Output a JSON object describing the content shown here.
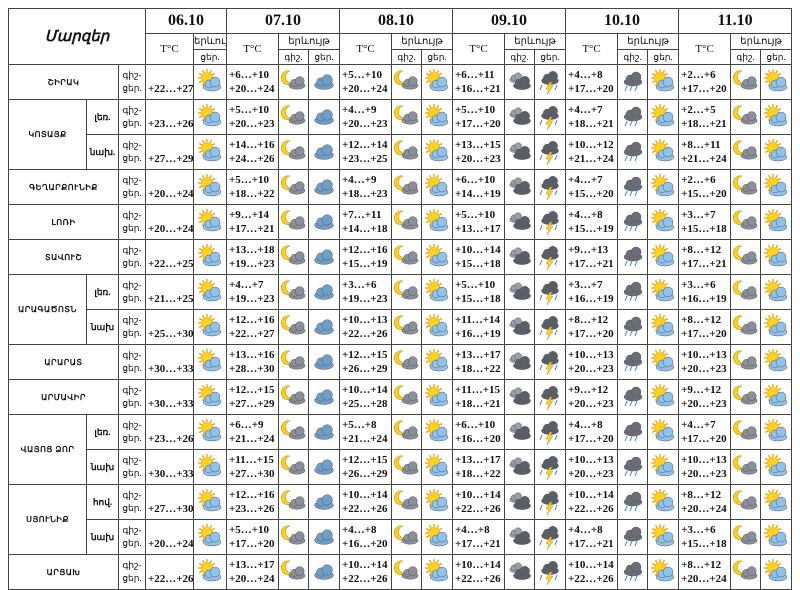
{
  "header": {
    "title": "Մարզեր",
    "dates": [
      "06.10",
      "07.10",
      "08.10",
      "09.10",
      "10.10",
      "11.10"
    ],
    "temp_label": "T°C",
    "phenomenon_label": "երևույթ",
    "night": "գիշ.",
    "day": "ցեր."
  },
  "row_label": [
    "գիշ-",
    "ցեր."
  ],
  "regions": [
    {
      "name": "ՇԻՐԱԿ",
      "rows": [
        {
          "first": "+22…+27",
          "days": [
            [
              "+6…+10",
              "+20…+24"
            ],
            [
              "+5…+10",
              "+20…+24"
            ],
            [
              "+6…+11",
              "+16…+21"
            ],
            [
              "+4…+8",
              "+17…+20"
            ],
            [
              "+2…+6",
              "+17…+20"
            ]
          ]
        }
      ]
    },
    {
      "name": "ԿՈՏԱՅՔ",
      "rows": [
        {
          "sub": "լեռ.",
          "first": "+23…+26",
          "days": [
            [
              "+5…+10",
              "+20…+23"
            ],
            [
              "+4…+9",
              "+20…+23"
            ],
            [
              "+5…+10",
              "+17…+20"
            ],
            [
              "+4…+7",
              "+18…+21"
            ],
            [
              "+2…+5",
              "+18…+21"
            ]
          ]
        },
        {
          "sub": "նախ.",
          "first": "+27…+29",
          "days": [
            [
              "+14…+16",
              "+24…+26"
            ],
            [
              "+12…+14",
              "+23…+25"
            ],
            [
              "+13…+15",
              "+20…+23"
            ],
            [
              "+10…+12",
              "+21…+24"
            ],
            [
              "+8…+11",
              "+21…+24"
            ]
          ]
        }
      ]
    },
    {
      "name": "ԳԵՂԱՐՔՈՒՆԻՔ",
      "rows": [
        {
          "first": "+20…+24",
          "days": [
            [
              "+5…+10",
              "+18…+22"
            ],
            [
              "+4…+9",
              "+18…+23"
            ],
            [
              "+6…+10",
              "+14…+19"
            ],
            [
              "+4…+7",
              "+15…+20"
            ],
            [
              "+2…+6",
              "+15…+20"
            ]
          ]
        }
      ]
    },
    {
      "name": "ԼՈՌԻ",
      "rows": [
        {
          "first": "+20…+24",
          "days": [
            [
              "+9…+14",
              "+17…+21"
            ],
            [
              "+7…+11",
              "+14…+18"
            ],
            [
              "+5…+10",
              "+13…+17"
            ],
            [
              "+4…+8",
              "+15…+19"
            ],
            [
              "+3…+7",
              "+15…+18"
            ]
          ]
        }
      ]
    },
    {
      "name": "ՏԱՎՈՒՇ",
      "rows": [
        {
          "first": "+22…+25",
          "days": [
            [
              "+13…+18",
              "+19…+23"
            ],
            [
              "+12…+16",
              "+15…+19"
            ],
            [
              "+10…+14",
              "+15…+18"
            ],
            [
              "+9…+13",
              "+17…+21"
            ],
            [
              "+8…+12",
              "+17…+21"
            ]
          ]
        }
      ]
    },
    {
      "name": "ԱՐԱԳԱԾՈՏՆ",
      "rows": [
        {
          "sub": "լեռ.",
          "first": "+21…+25",
          "days": [
            [
              "+4…+7",
              "+19…+23"
            ],
            [
              "+3…+6",
              "+19…+23"
            ],
            [
              "+5…+10",
              "+15…+18"
            ],
            [
              "+3…+7",
              "+16…+19"
            ],
            [
              "+3…+6",
              "+16…+19"
            ]
          ]
        },
        {
          "sub": "նախ",
          "first": "+25…+30",
          "days": [
            [
              "+12…+16",
              "+22…+27"
            ],
            [
              "+10…+13",
              "+22…+26"
            ],
            [
              "+11…+14",
              "+16…+19"
            ],
            [
              "+8…+12",
              "+17…+20"
            ],
            [
              "+8…+12",
              "+17…+20"
            ]
          ]
        }
      ]
    },
    {
      "name": "ԱՐԱՐԱՏ",
      "rows": [
        {
          "first": "+30…+33",
          "days": [
            [
              "+13…+16",
              "+28…+30"
            ],
            [
              "+12…+15",
              "+26…+29"
            ],
            [
              "+13…+17",
              "+18…+22"
            ],
            [
              "+10…+13",
              "+20…+23"
            ],
            [
              "+10…+13",
              "+20…+23"
            ]
          ]
        }
      ]
    },
    {
      "name": "ԱՐՄԱՎԻՐ",
      "rows": [
        {
          "first": "+30…+33",
          "days": [
            [
              "+12…+15",
              "+27…+29"
            ],
            [
              "+10…+14",
              "+25…+28"
            ],
            [
              "+11…+15",
              "+18…+21"
            ],
            [
              "+9…+12",
              "+20…+23"
            ],
            [
              "+9…+12",
              "+20…+23"
            ]
          ]
        }
      ]
    },
    {
      "name": "ՎԱՅՈՑ ՁՈՐ",
      "rows": [
        {
          "sub": "լեռ.",
          "first": "+23…+26",
          "days": [
            [
              "+6…+9",
              "+21…+24"
            ],
            [
              "+5…+8",
              "+21…+24"
            ],
            [
              "+6…+10",
              "+16…+20"
            ],
            [
              "+4…+8",
              "+17…+20"
            ],
            [
              "+4…+7",
              "+17…+20"
            ]
          ]
        },
        {
          "sub": "նախ",
          "first": "+30…+33",
          "days": [
            [
              "+11…+15",
              "+27…+30"
            ],
            [
              "+12…+15",
              "+26…+29"
            ],
            [
              "+13…+17",
              "+18…+22"
            ],
            [
              "+10…+13",
              "+20…+23"
            ],
            [
              "+10…+13",
              "+20…+23"
            ]
          ]
        }
      ]
    },
    {
      "name": "ՍՅՈՒՆԻՔ",
      "rows": [
        {
          "sub": "հով.",
          "first": "+27…+30",
          "days": [
            [
              "+12…+16",
              "+23…+26"
            ],
            [
              "+10…+14",
              "+22…+26"
            ],
            [
              "+10…+14",
              "+22…+26"
            ],
            [
              "+10…+14",
              "+22…+26"
            ],
            [
              "+8…+12",
              "+20…+24"
            ]
          ]
        },
        {
          "sub": "նախ",
          "first": "+20…+24",
          "days": [
            [
              "+5…+10",
              "+17…+20"
            ],
            [
              "+4…+8",
              "+16…+20"
            ],
            [
              "+4…+8",
              "+17…+21"
            ],
            [
              "+4…+8",
              "+17…+21"
            ],
            [
              "+3…+6",
              "+15…+18"
            ]
          ]
        }
      ]
    },
    {
      "name": "ԱՐՑԱԽ",
      "rows": [
        {
          "first": "+22…+26",
          "days": [
            [
              "+13…+17",
              "+20…+24"
            ],
            [
              "+10…+14",
              "+22…+26"
            ],
            [
              "+10…+14",
              "+22…+26"
            ],
            [
              "+10…+14",
              "+22…+26"
            ],
            [
              "+8…+12",
              "+20…+24"
            ]
          ]
        }
      ]
    }
  ]
}
